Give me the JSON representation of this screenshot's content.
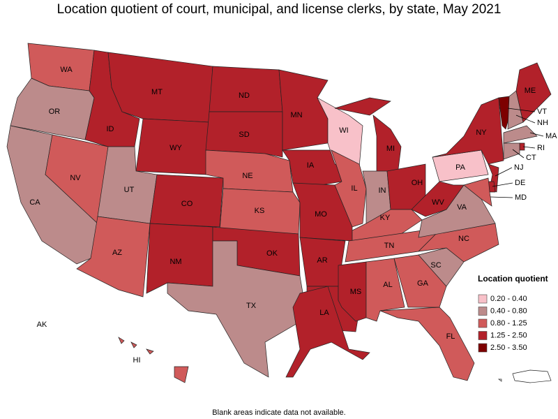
{
  "title": "Location quotient of court, municipal, and license clerks, by state, May 2021",
  "footnote": "Blank areas indicate data not available.",
  "legend": {
    "title": "Location quotient",
    "items": [
      {
        "label": "0.20 - 0.40",
        "color": "#f8c1c9"
      },
      {
        "label": "0.40 - 0.80",
        "color": "#bc8b8b"
      },
      {
        "label": "0.80 - 1.25",
        "color": "#d05a5a"
      },
      {
        "label": "1.25 - 2.50",
        "color": "#b2212a"
      },
      {
        "label": "2.50 - 3.50",
        "color": "#7d0000"
      }
    ]
  },
  "states": [
    {
      "label": "WA",
      "color": "#d05a5a"
    },
    {
      "label": "OR",
      "color": "#bc8b8b"
    },
    {
      "label": "CA",
      "color": "#bc8b8b"
    },
    {
      "label": "NV",
      "color": "#d05a5a"
    },
    {
      "label": "ID",
      "color": "#b2212a"
    },
    {
      "label": "MT",
      "color": "#b2212a"
    },
    {
      "label": "WY",
      "color": "#b2212a"
    },
    {
      "label": "UT",
      "color": "#bc8b8b"
    },
    {
      "label": "AZ",
      "color": "#d05a5a"
    },
    {
      "label": "CO",
      "color": "#b2212a"
    },
    {
      "label": "NM",
      "color": "#b2212a"
    },
    {
      "label": "ND",
      "color": "#b2212a"
    },
    {
      "label": "SD",
      "color": "#b2212a"
    },
    {
      "label": "NE",
      "color": "#d05a5a"
    },
    {
      "label": "KS",
      "color": "#d05a5a"
    },
    {
      "label": "OK",
      "color": "#b2212a"
    },
    {
      "label": "TX",
      "color": "#bc8b8b"
    },
    {
      "label": "MN",
      "color": "#b2212a"
    },
    {
      "label": "IA",
      "color": "#b2212a"
    },
    {
      "label": "MO",
      "color": "#b2212a"
    },
    {
      "label": "AR",
      "color": "#b2212a"
    },
    {
      "label": "LA",
      "color": "#b2212a"
    },
    {
      "label": "WI",
      "color": "#f8c1c9"
    },
    {
      "label": "IL",
      "color": "#d05a5a"
    },
    {
      "label": "MI",
      "color": "#b2212a"
    },
    {
      "label": "IN",
      "color": "#bc8b8b"
    },
    {
      "label": "OH",
      "color": "#b2212a"
    },
    {
      "label": "KY",
      "color": "#d05a5a"
    },
    {
      "label": "TN",
      "color": "#d05a5a"
    },
    {
      "label": "MS",
      "color": "#b2212a"
    },
    {
      "label": "AL",
      "color": "#d05a5a"
    },
    {
      "label": "GA",
      "color": "#d05a5a"
    },
    {
      "label": "FL",
      "color": "#d05a5a"
    },
    {
      "label": "SC",
      "color": "#bc8b8b"
    },
    {
      "label": "NC",
      "color": "#d05a5a"
    },
    {
      "label": "VA",
      "color": "#bc8b8b"
    },
    {
      "label": "WV",
      "color": "#b2212a"
    },
    {
      "label": "PA",
      "color": "#f8c1c9"
    },
    {
      "label": "NY",
      "color": "#b2212a"
    },
    {
      "label": "NJ",
      "color": "#b2212a"
    },
    {
      "label": "DE",
      "color": "#b2212a"
    },
    {
      "label": "MD",
      "color": "#d05a5a"
    },
    {
      "label": "VT",
      "color": "#7d0000"
    },
    {
      "label": "NH",
      "color": "#bc8b8b"
    },
    {
      "label": "ME",
      "color": "#b2212a"
    },
    {
      "label": "MA",
      "color": "#bc8b8b"
    },
    {
      "label": "RI",
      "color": "#b2212a"
    },
    {
      "label": "CT",
      "color": "#bc8b8b"
    },
    {
      "label": "AK",
      "color": "#b2212a"
    },
    {
      "label": "HI",
      "color": "#d05a5a"
    }
  ]
}
